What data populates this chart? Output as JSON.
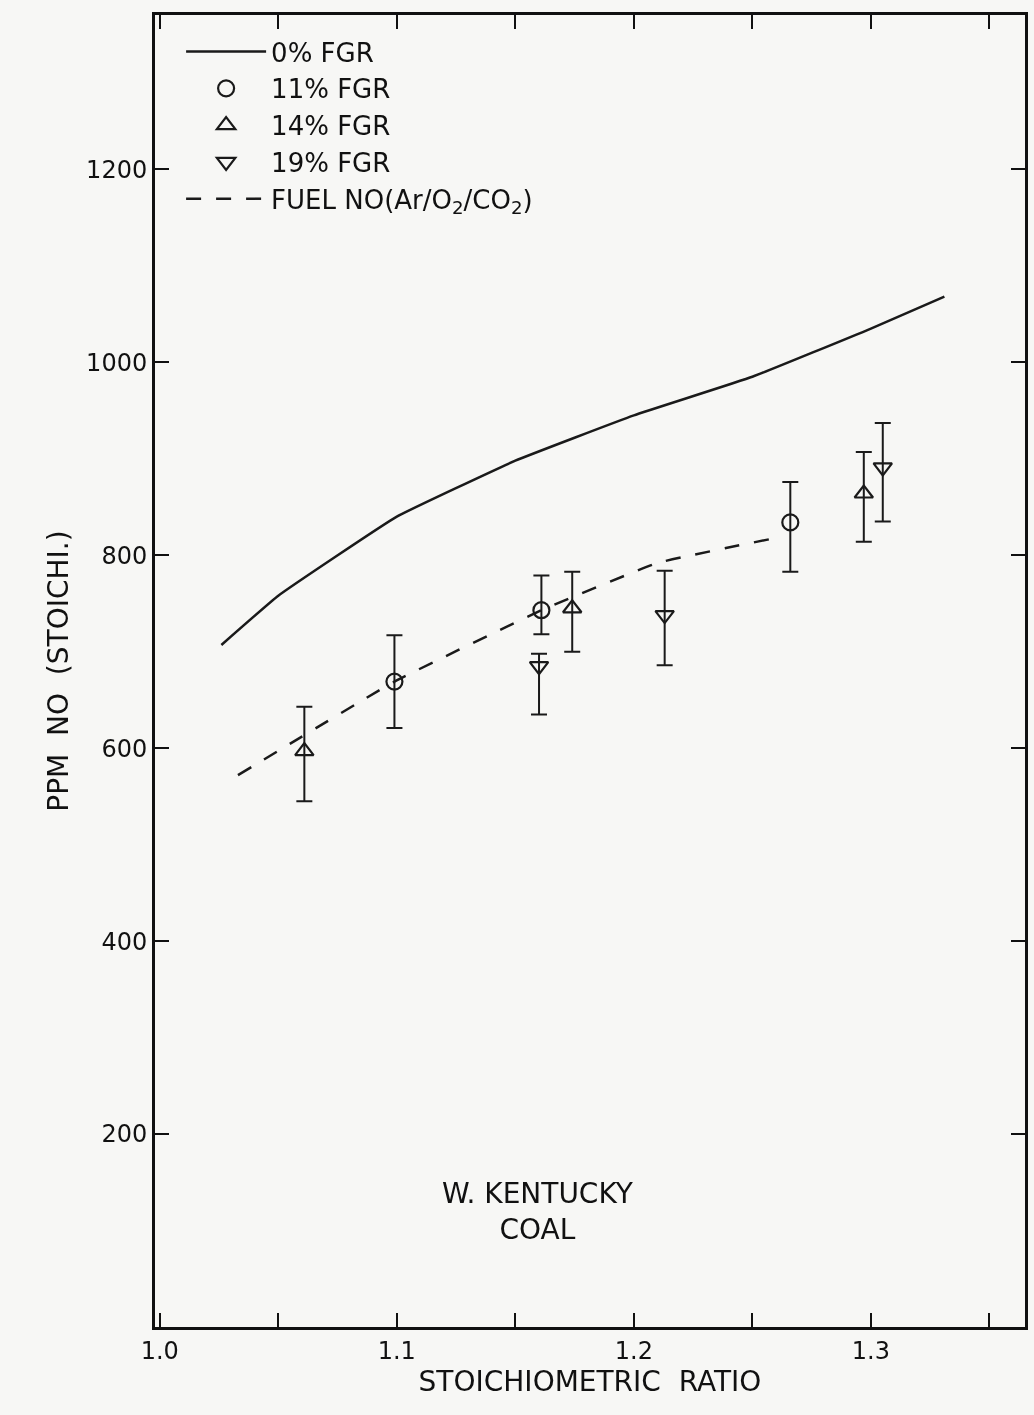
{
  "chart_data": {
    "type": "scatter",
    "xlabel": "STOICHIOMETRIC  RATIO",
    "ylabel": "PPM  NO  (STOICHI.)",
    "annotations": [
      "W. KENTUCKY\nCOAL"
    ],
    "xlim": [
      0.998,
      1.365
    ],
    "ylim": [
      0,
      1360
    ],
    "xticks": [
      {
        "value": 1.0,
        "label": "1.0"
      },
      {
        "value": 1.05,
        "label": null
      },
      1.1,
      {
        "value": 1.15,
        "label": null
      },
      1.2,
      {
        "value": 1.25,
        "label": null
      },
      1.3,
      {
        "value": 1.35,
        "label": null
      }
    ],
    "yticks": [
      200,
      400,
      600,
      800,
      1000,
      1200
    ],
    "grid": false,
    "legend": "top left",
    "series": [
      {
        "name": "0% FGR",
        "type": "line",
        "line_style": "solid",
        "marker": "none",
        "color": "#1a1a1a",
        "x": [
          1.026,
          1.05,
          1.1,
          1.15,
          1.2,
          1.25,
          1.3,
          1.331
        ],
        "values": [
          707,
          758,
          840,
          898,
          945,
          985,
          1035,
          1068
        ]
      },
      {
        "name": "11% FGR",
        "marker": "circle",
        "color": "#1a1a1a",
        "x": [
          1.099,
          1.161,
          1.266
        ],
        "values": [
          669,
          743,
          834
        ],
        "errors": [
          [
            621,
            717
          ],
          [
            718,
            779
          ],
          [
            783,
            876
          ]
        ]
      },
      {
        "name": "14% FGR",
        "marker": "triangle",
        "color": "#1a1a1a",
        "x": [
          1.061,
          1.174,
          1.297
        ],
        "values": [
          597,
          745,
          864
        ],
        "errors": [
          [
            545,
            643
          ],
          [
            700,
            783
          ],
          [
            814,
            907
          ]
        ]
      },
      {
        "name": "19% FGR",
        "marker": "triangle-down",
        "color": "#1a1a1a",
        "x": [
          1.16,
          1.213,
          1.305
        ],
        "values": [
          685,
          738,
          891
        ],
        "errors": [
          [
            635,
            698
          ],
          [
            686,
            784
          ],
          [
            835,
            937
          ]
        ]
      },
      {
        "name": "FUEL NO(Ar/O$_{2}$/CO$_{2}$)",
        "type": "line",
        "line_style": "dashed",
        "marker": "none",
        "color": "#1a1a1a",
        "x": [
          1.033,
          1.099,
          1.161,
          1.21,
          1.258
        ],
        "values": [
          572,
          669,
          743,
          792,
          817
        ]
      }
    ]
  }
}
